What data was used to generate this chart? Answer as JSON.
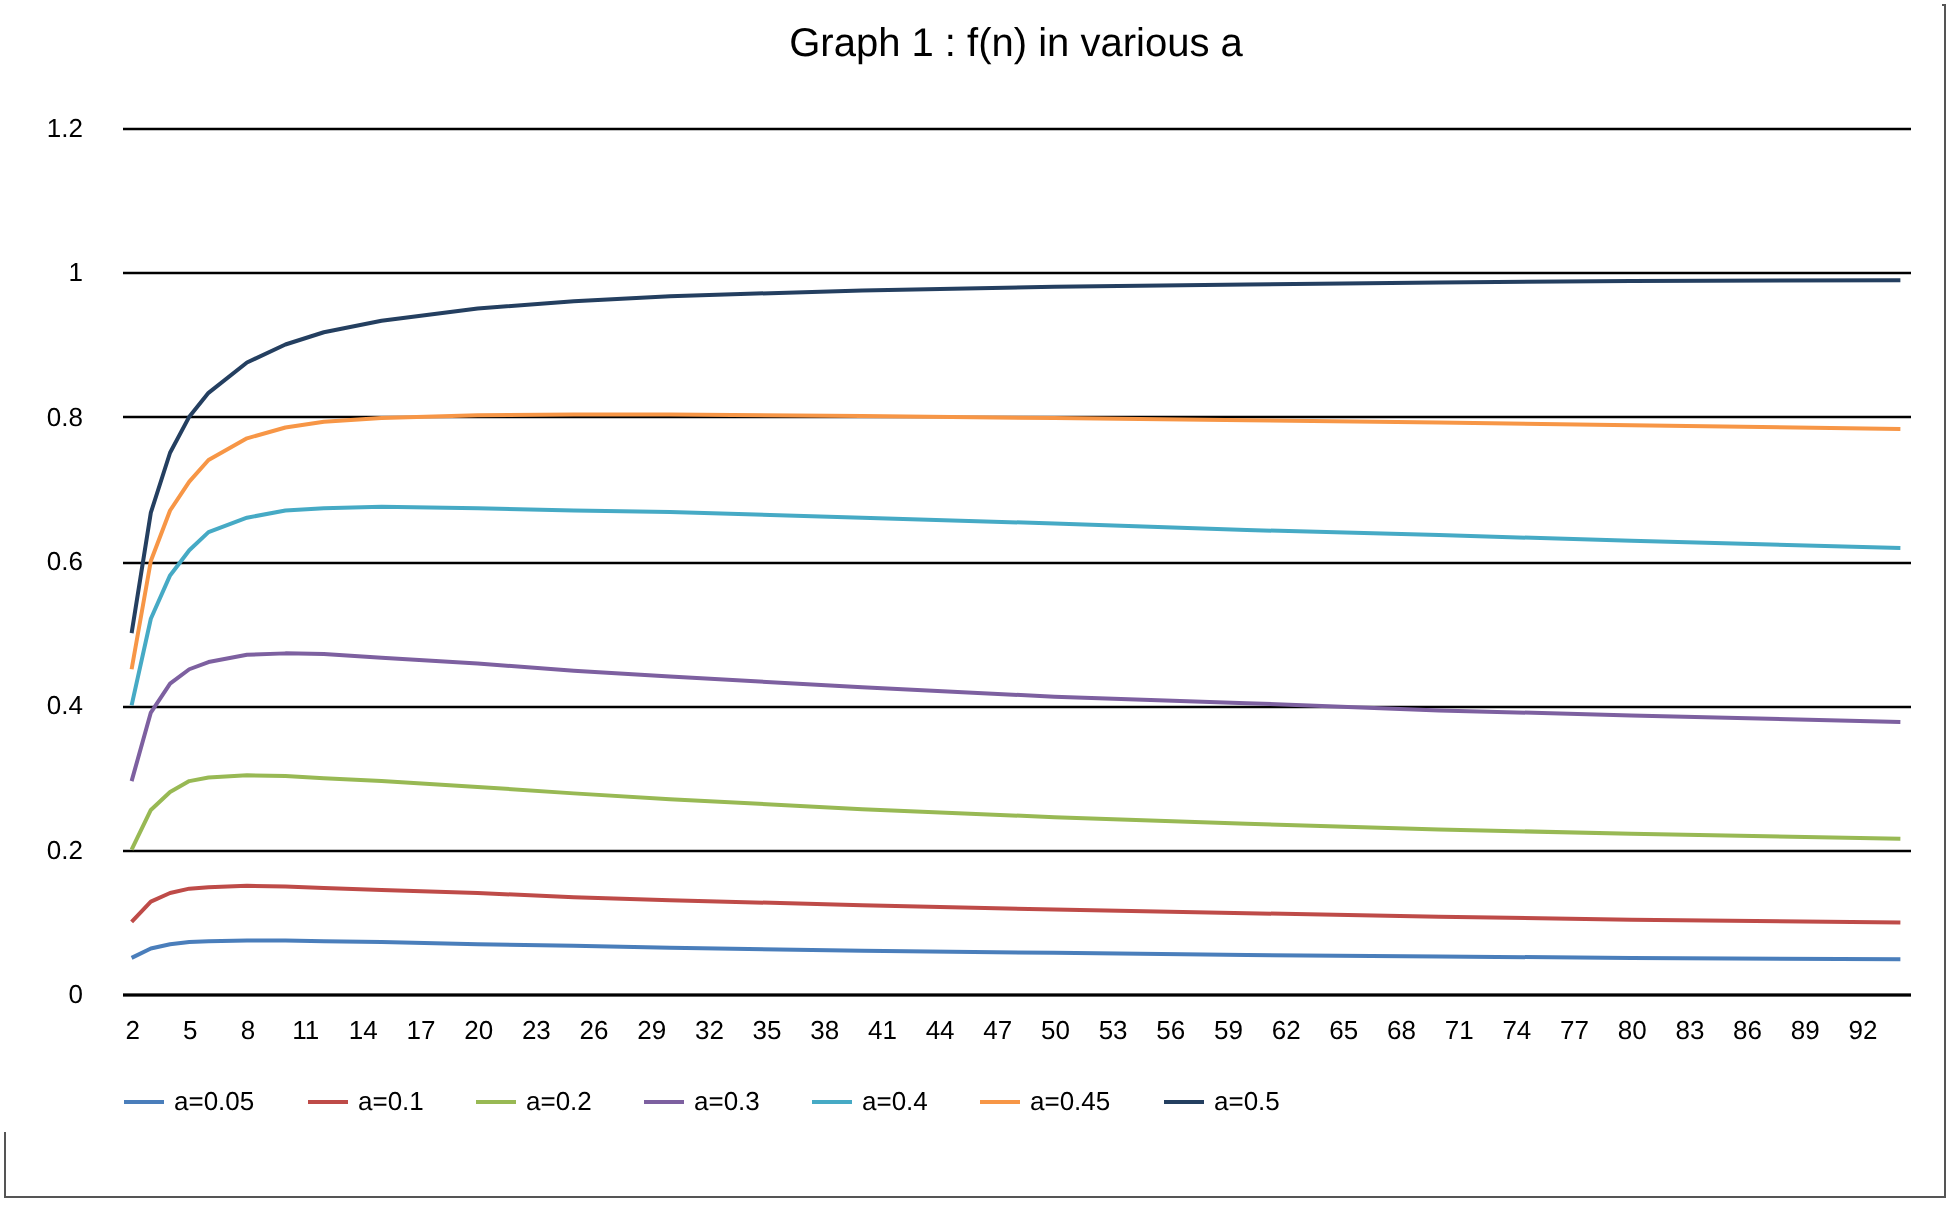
{
  "chart_data": {
    "type": "line",
    "title": "Graph 1 : f(n) in various a",
    "x": [
      2,
      3,
      4,
      5,
      6,
      8,
      10,
      12,
      15,
      20,
      25,
      30,
      40,
      50,
      60,
      70,
      80,
      94
    ],
    "xlim": [
      1.5,
      94.5
    ],
    "xticks": [
      2,
      5,
      8,
      11,
      14,
      17,
      20,
      23,
      26,
      29,
      32,
      35,
      38,
      41,
      44,
      47,
      50,
      53,
      56,
      59,
      62,
      65,
      68,
      71,
      74,
      77,
      80,
      83,
      86,
      89,
      92
    ],
    "ylim": [
      0,
      1.2
    ],
    "yticks": [
      0,
      0.2,
      0.4,
      0.6,
      0.8,
      1,
      1.2
    ],
    "grid": "y",
    "legend": "bottom",
    "marker": "none",
    "line_style": "solid",
    "series": [
      {
        "name": "a=0.05",
        "color": "#4a7ebb",
        "values": [
          0.05,
          0.063,
          0.069,
          0.072,
          0.073,
          0.074,
          0.074,
          0.073,
          0.072,
          0.069,
          0.067,
          0.064,
          0.06,
          0.057,
          0.054,
          0.052,
          0.05,
          0.048
        ]
      },
      {
        "name": "a=0.1",
        "color": "#be4b48",
        "values": [
          0.1,
          0.128,
          0.14,
          0.146,
          0.148,
          0.15,
          0.149,
          0.147,
          0.144,
          0.14,
          0.134,
          0.13,
          0.123,
          0.117,
          0.112,
          0.107,
          0.103,
          0.099
        ]
      },
      {
        "name": "a=0.2",
        "color": "#98b954",
        "values": [
          0.2,
          0.255,
          0.28,
          0.295,
          0.3,
          0.303,
          0.302,
          0.299,
          0.295,
          0.287,
          0.278,
          0.27,
          0.256,
          0.245,
          0.236,
          0.228,
          0.222,
          0.215
        ]
      },
      {
        "name": "a=0.3",
        "color": "#7d60a0",
        "values": [
          0.295,
          0.39,
          0.43,
          0.45,
          0.46,
          0.47,
          0.472,
          0.471,
          0.466,
          0.458,
          0.448,
          0.44,
          0.425,
          0.412,
          0.403,
          0.393,
          0.386,
          0.377
        ]
      },
      {
        "name": "a=0.4",
        "color": "#46aac5",
        "values": [
          0.4,
          0.52,
          0.58,
          0.615,
          0.64,
          0.66,
          0.67,
          0.673,
          0.675,
          0.673,
          0.67,
          0.668,
          0.66,
          0.652,
          0.643,
          0.636,
          0.628,
          0.618
        ]
      },
      {
        "name": "a=0.45",
        "color": "#f79646",
        "values": [
          0.45,
          0.6,
          0.67,
          0.71,
          0.74,
          0.77,
          0.785,
          0.793,
          0.798,
          0.802,
          0.803,
          0.803,
          0.801,
          0.798,
          0.795,
          0.792,
          0.788,
          0.783
        ]
      },
      {
        "name": "a=0.5",
        "color": "#243f60",
        "values": [
          0.5,
          0.667,
          0.75,
          0.8,
          0.833,
          0.875,
          0.9,
          0.917,
          0.933,
          0.95,
          0.96,
          0.967,
          0.975,
          0.98,
          0.983,
          0.986,
          0.988,
          0.989
        ]
      }
    ]
  }
}
